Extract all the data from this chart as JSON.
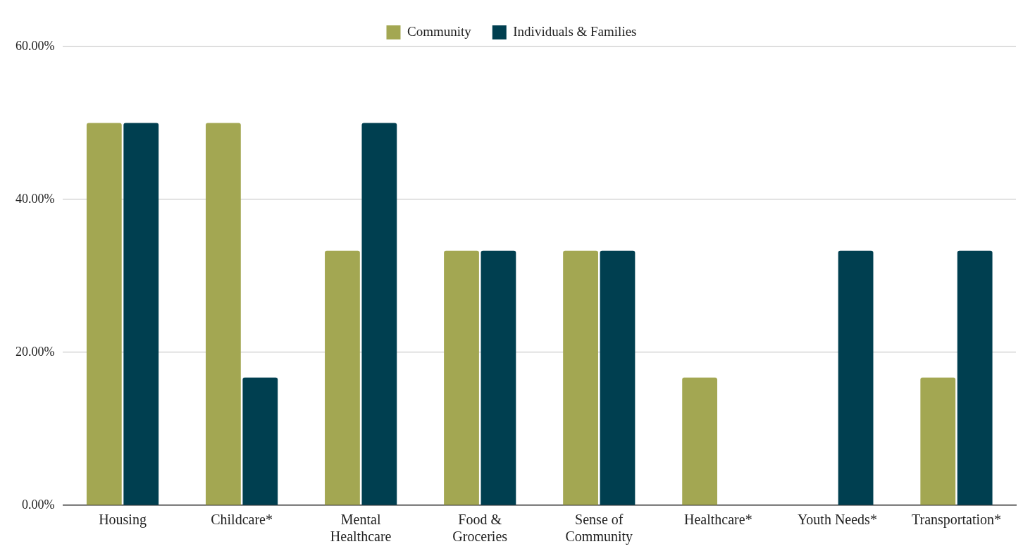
{
  "chart_data": {
    "type": "bar",
    "categories": [
      "Housing",
      "Childcare*",
      "Mental Healthcare",
      "Food & Groceries",
      "Sense of Community",
      "Healthcare*",
      "Youth Needs*",
      "Transportation*"
    ],
    "series": [
      {
        "name": "Community",
        "color": "#a3a752",
        "values": [
          50,
          50,
          33.3,
          33.3,
          33.3,
          16.7,
          0,
          16.7
        ]
      },
      {
        "name": "Individuals & Families",
        "color": "#003f50",
        "values": [
          50,
          16.7,
          50,
          33.3,
          33.3,
          0,
          33.3,
          33.3
        ]
      }
    ],
    "ylim": [
      0,
      60
    ],
    "yticks": [
      {
        "value": 0,
        "label": "0.00%"
      },
      {
        "value": 20,
        "label": "20.00%"
      },
      {
        "value": 40,
        "label": "40.00%"
      },
      {
        "value": 60,
        "label": "60.00%"
      }
    ],
    "grid": "y",
    "legend": "top"
  }
}
